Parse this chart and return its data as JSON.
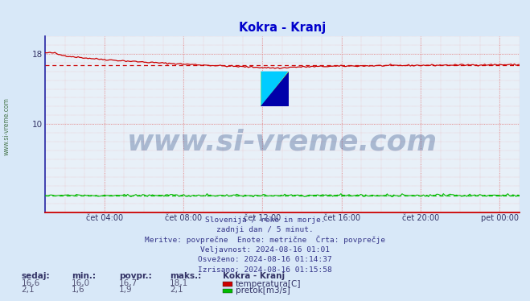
{
  "title": "Kokra - Kranj",
  "bg_color": "#d8e8f8",
  "plot_bg_color": "#e8f0f8",
  "x_labels": [
    "čet 04:00",
    "čet 08:00",
    "čet 12:00",
    "čet 16:00",
    "čet 20:00",
    "pet 00:00"
  ],
  "x_ticks": [
    4,
    8,
    12,
    16,
    20,
    24
  ],
  "x_min": 1,
  "x_max": 25,
  "y_min": 0,
  "y_max": 20,
  "y_ticks": [
    10,
    18
  ],
  "temp_color": "#cc0000",
  "flow_color": "#00bb00",
  "temp_avg": 16.7,
  "flow_avg": 1.9,
  "watermark": "www.si-vreme.com",
  "watermark_color": "#1a3a7a",
  "watermark_alpha": 0.3,
  "sidebar_text": "www.si-vreme.com",
  "sidebar_color": "#1a6030",
  "info_lines": [
    "Slovenija / reke in morje.",
    "zadnji dan / 5 minut.",
    "Meritve: povprečne  Enote: metrične  Črta: povprečje",
    "Veljavnost: 2024-08-16 01:01",
    "Osveženo: 2024-08-16 01:14:37",
    "Izrisano: 2024-08-16 01:15:58"
  ],
  "legend_title": "Kokra - Kranj",
  "legend_items": [
    {
      "label": "temperatura[C]",
      "color": "#cc0000"
    },
    {
      "label": "pretok[m3/s]",
      "color": "#00bb00"
    }
  ],
  "stats_headers": [
    "sedaj:",
    "min.:",
    "povpr.:",
    "maks.:"
  ],
  "stats_temp": [
    "16,6",
    "16,0",
    "16,7",
    "18,1"
  ],
  "stats_flow": [
    "2,1",
    "1,6",
    "1,9",
    "2,1"
  ]
}
